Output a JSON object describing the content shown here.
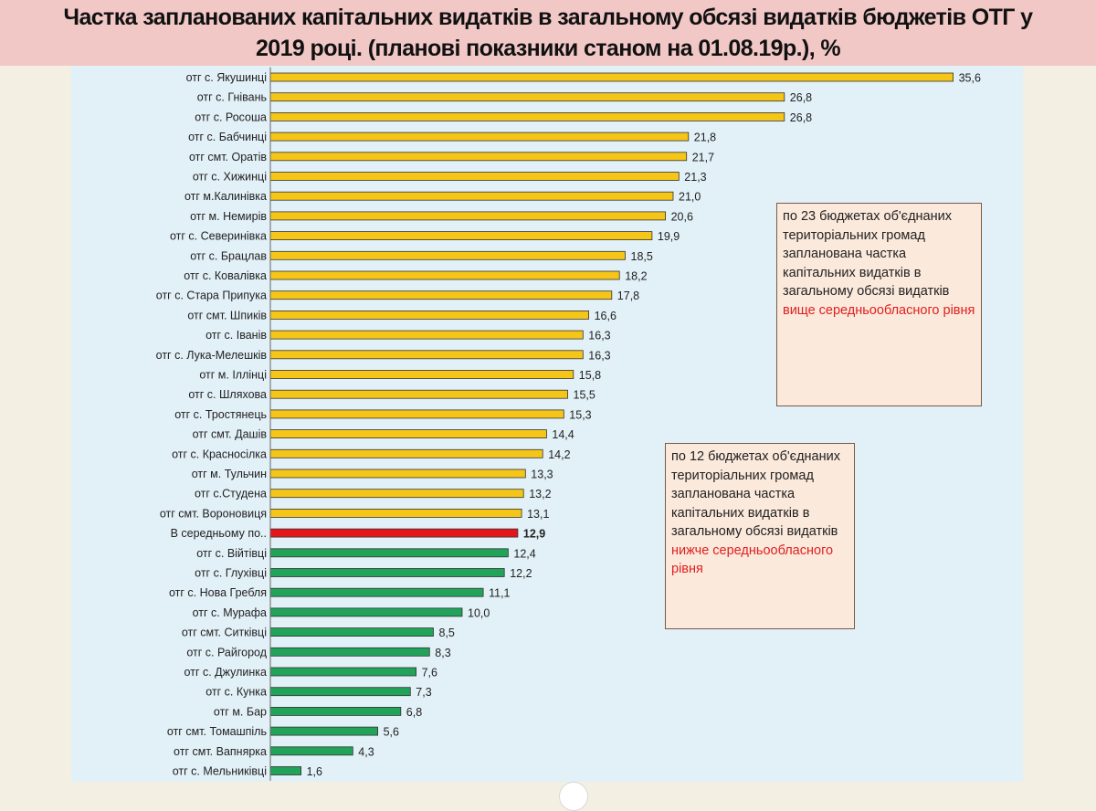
{
  "title_line1": "Частка запланованих капітальних видатків в загальному обсязі видатків бюджетів ОТГ у",
  "title_line2": "2019 році. (планові показники станом на 01.08.19р.), %",
  "note_above": {
    "text": "по 23 бюджетах об'єднаних територіальних громад  запланована частка капітальних видатків в загальному обсязі видатків ",
    "highlight": "вище середньообласного рівня"
  },
  "note_below": {
    "text": "по 12 бюджетах об'єднаних територіальних громад запланована частка капітальних видатків в загальному обсязі видатків ",
    "highlight": "нижче середньообласного рівня"
  },
  "chart_data": {
    "type": "bar",
    "orientation": "horizontal",
    "categories": [
      "отг с. Якушинці",
      "отг с. Гнівань",
      "отг с. Росоша",
      "отг с. Бабчинці",
      "отг смт. Оратів",
      "отг с. Хижинці",
      "отг м.Калинівка",
      "отг м. Немирів",
      "отг с. Северинівка",
      "отг с. Брацлав",
      "отг с. Ковалівка",
      "отг с. Стара Припука",
      "отг смт. Шпиків",
      "отг с. Іванів",
      "отг с. Лука-Мелешків",
      "отг м. Іллінці",
      "отг с. Шляхова",
      "отг с. Тростянець",
      "отг смт. Дашів",
      "отг с. Красносілка",
      "отг м. Тульчин",
      "отг с.Студена",
      "отг смт. Вороновиця",
      "В середньому по..",
      "отг с. Війтівці",
      "отг с. Глухівці",
      "отг с. Нова Гребля",
      "отг с. Мурафа",
      "отг смт. Ситківці",
      "отг с. Райгород",
      "отг с. Джулинка",
      "отг с. Кунка",
      "отг м. Бар",
      "отг смт. Томашпіль",
      "отг смт. Вапнярка",
      "отг с. Мельниківці"
    ],
    "values": [
      35.6,
      26.8,
      26.8,
      21.8,
      21.7,
      21.3,
      21.0,
      20.6,
      19.9,
      18.5,
      18.2,
      17.8,
      16.6,
      16.3,
      16.3,
      15.8,
      15.5,
      15.3,
      14.4,
      14.2,
      13.3,
      13.2,
      13.1,
      12.9,
      12.4,
      12.2,
      11.1,
      10.0,
      8.5,
      8.3,
      7.6,
      7.3,
      6.8,
      5.6,
      4.3,
      1.6
    ],
    "value_labels": [
      "35,6",
      "26,8",
      "26,8",
      "21,8",
      "21,7",
      "21,3",
      "21,0",
      "20,6",
      "19,9",
      "18,5",
      "18,2",
      "17,8",
      "16,6",
      "16,3",
      "16,3",
      "15,8",
      "15,5",
      "15,3",
      "14,4",
      "14,2",
      "13,3",
      "13,2",
      "13,1",
      "12,9",
      "12,4",
      "12,2",
      "11,1",
      "10,0",
      "8,5",
      "8,3",
      "7,6",
      "7,3",
      "6,8",
      "5,6",
      "4,3",
      "1,6"
    ],
    "average_category": "В середньому по..",
    "colors": {
      "above": "#f5c518",
      "average": "#e3161b",
      "below": "#21a35a",
      "bar_stroke": "#333333"
    },
    "grid": false,
    "legend": "none",
    "xlim": [
      0,
      36
    ]
  }
}
